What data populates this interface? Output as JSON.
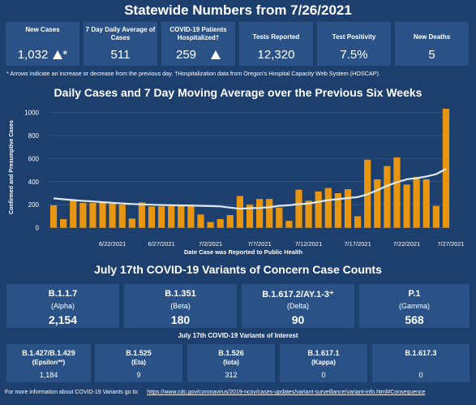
{
  "title": "Statewide Numbers from 7/26/2021",
  "stats": [
    {
      "label": "New Cases",
      "value": "1,032",
      "arrow": "up",
      "marker": "*"
    },
    {
      "label": "7 Day Daily Average of Cases",
      "value": "511"
    },
    {
      "label": "COVID-19 Patients Hospitalized†",
      "value": "259",
      "arrow": "up"
    },
    {
      "label": "Tests Reported",
      "value": "12,320"
    },
    {
      "label": "Test Positivity",
      "value": "7.5%"
    },
    {
      "label": "New Deaths",
      "value": "5"
    }
  ],
  "footnote": "* Arrows indicate an increase or decrease from the previous day. †Hospitalization data from Oregon's Hospital Capacity Web System (HOSCAP).",
  "chart_title": "Daily Cases and 7 Day Moving Average over the Previous Six Weeks",
  "chart_data": {
    "type": "bar",
    "ylabel": "Confirmed and Presumptive Cases",
    "xlabel": "Date Case was Reported to Public Health",
    "ylim": [
      -80,
      1060
    ],
    "yticks": [
      0,
      200,
      400,
      600,
      800,
      1000
    ],
    "xtick_labels": [
      "6/22/2021",
      "6/27/2021",
      "7/2/2021",
      "7/7/2021",
      "7/12/2021",
      "7/17/2021",
      "7/22/2021",
      "7/27/2021"
    ],
    "categories": [
      "6/16/2021",
      "6/17/2021",
      "6/18/2021",
      "6/19/2021",
      "6/20/2021",
      "6/21/2021",
      "6/22/2021",
      "6/23/2021",
      "6/24/2021",
      "6/25/2021",
      "6/26/2021",
      "6/27/2021",
      "6/28/2021",
      "6/29/2021",
      "6/30/2021",
      "7/1/2021",
      "7/2/2021",
      "7/3/2021",
      "7/4/2021",
      "7/5/2021",
      "7/6/2021",
      "7/7/2021",
      "7/8/2021",
      "7/9/2021",
      "7/10/2021",
      "7/11/2021",
      "7/12/2021",
      "7/13/2021",
      "7/14/2021",
      "7/15/2021",
      "7/16/2021",
      "7/17/2021",
      "7/18/2021",
      "7/19/2021",
      "7/20/2021",
      "7/21/2021",
      "7/22/2021",
      "7/23/2021",
      "7/24/2021",
      "7/25/2021",
      "7/26/2021"
    ],
    "series": [
      {
        "type": "bar",
        "color": "#e8950f",
        "values": [
          195,
          75,
          245,
          215,
          215,
          225,
          220,
          200,
          80,
          220,
          185,
          185,
          190,
          195,
          190,
          115,
          50,
          75,
          110,
          275,
          200,
          250,
          250,
          175,
          60,
          330,
          235,
          315,
          345,
          300,
          335,
          100,
          590,
          420,
          535,
          610,
          375,
          440,
          420,
          190,
          1032
        ]
      },
      {
        "type": "line",
        "color": "#dce9f0",
        "values": [
          255,
          247,
          240,
          233,
          228,
          222,
          217,
          211,
          206,
          203,
          200,
          197,
          196,
          194,
          193,
          190,
          188,
          185,
          175,
          165,
          170,
          172,
          178,
          190,
          195,
          205,
          210,
          225,
          240,
          248,
          258,
          266,
          290,
          325,
          365,
          395,
          420,
          430,
          445,
          465,
          511
        ]
      }
    ]
  },
  "variants_title": "July 17th  COVID-19 Variants of Concern Case Counts",
  "variants": [
    {
      "name": "B.1.1.7",
      "label": "(Alpha)",
      "count": "2,154"
    },
    {
      "name": "B.1.351",
      "label": "(Beta)",
      "count": "180"
    },
    {
      "name": "B.1.617.2/AY.1-3⁺",
      "label": "(Delta)",
      "count": "90"
    },
    {
      "name": "P.1",
      "label": "(Gamma)",
      "count": "568"
    }
  ],
  "interest_title": "July 17th COVID-19 Variants of Interest",
  "interest": [
    {
      "name": "B.1.427/B.1.429",
      "label": "(Epsilon**)",
      "count": "1,184"
    },
    {
      "name": "B.1.525",
      "label": "(Eta)",
      "count": "9"
    },
    {
      "name": "B.1.526",
      "label": "(Iota)",
      "count": "312"
    },
    {
      "name": "B.1.617.1",
      "label": "(Kappa)",
      "count": "0"
    },
    {
      "name": "B.1.617.3",
      "label": "",
      "count": "0"
    }
  ],
  "more_info": {
    "text": "For more information about COVID-19 Variants go to:",
    "link": "https://www.cdc.gov/coronavirus/2019-ncov/cases-updates/variant-surveillance/variant-info.html#Consequence"
  }
}
